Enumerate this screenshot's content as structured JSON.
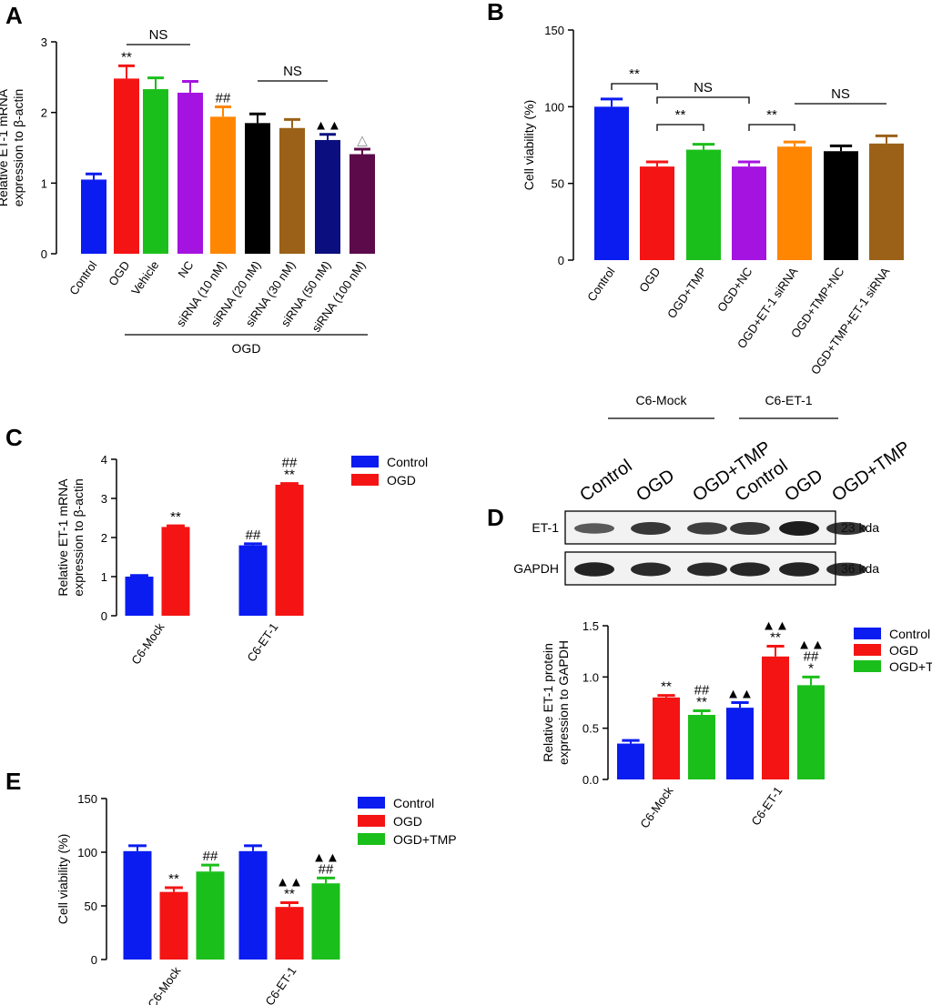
{
  "colors": {
    "blue": "#0a1cf0",
    "red": "#f41414",
    "green": "#1bbf1b",
    "purple": "#a413e0",
    "orange": "#ff8600",
    "black": "#000000",
    "brown": "#9b6118",
    "navy": "#0a0e7e",
    "maroon": "#5c0a4a"
  },
  "chart_data": [
    {
      "id": "A",
      "panel": "A",
      "type": "bar",
      "ylabel_lines": [
        "Relative ET-1 mRNA",
        "expression to β-actin"
      ],
      "ylim": [
        0,
        3
      ],
      "yticks": [
        0,
        1,
        2,
        3
      ],
      "categories": [
        "Control",
        "OGD",
        "Vehicle",
        "NC",
        "siRNA (10 nM)",
        "siRNA (20 nM)",
        "siRNA (30 nM)",
        "siRNA (50 nM)",
        "siRNA (100 nM)"
      ],
      "values": [
        1.05,
        2.48,
        2.33,
        2.28,
        1.94,
        1.85,
        1.78,
        1.61,
        1.41
      ],
      "errors": [
        0.08,
        0.18,
        0.16,
        0.16,
        0.14,
        0.13,
        0.12,
        0.08,
        0.07
      ],
      "bar_colors": [
        "blue",
        "red",
        "green",
        "purple",
        "orange",
        "black",
        "brown",
        "navy",
        "maroon"
      ],
      "annotations": [
        "",
        "**",
        "",
        "",
        "##",
        "",
        "",
        "▲▲",
        "△"
      ],
      "brackets": [
        {
          "from": 1,
          "to": 3,
          "label": "NS",
          "type": "line"
        },
        {
          "from": 5,
          "to": 7,
          "label": "NS",
          "type": "line"
        }
      ],
      "group_label": {
        "text": "OGD",
        "from": 1,
        "to": 8
      }
    },
    {
      "id": "B",
      "panel": "B",
      "type": "bar",
      "ylabel_lines": [
        "Cell viability (%)"
      ],
      "ylim": [
        0,
        150
      ],
      "yticks": [
        0,
        50,
        100,
        150
      ],
      "categories": [
        "Control",
        "OGD",
        "OGD+TMP",
        "OGD+NC",
        "OGD+ET-1 siRNA",
        "OGD+TMP+NC",
        "OGD+TMP+ET-1 siRNA"
      ],
      "values": [
        100,
        61,
        72,
        61,
        74,
        71,
        76
      ],
      "errors": [
        5,
        3,
        3.5,
        3,
        3,
        3.5,
        5
      ],
      "bar_colors": [
        "blue",
        "red",
        "green",
        "purple",
        "orange",
        "black",
        "brown"
      ],
      "annotations": [
        "",
        "",
        "",
        "",
        "",
        "",
        ""
      ],
      "brackets": [
        {
          "from": 0,
          "to": 1,
          "label": "**",
          "type": "bracket"
        },
        {
          "from": 1,
          "to": 3,
          "label": "NS",
          "type": "bracket"
        },
        {
          "from": 1,
          "to": 2,
          "label": "**",
          "type": "bracket"
        },
        {
          "from": 3,
          "to": 4,
          "label": "**",
          "type": "bracket"
        },
        {
          "from": 4,
          "to": 6,
          "label": "NS",
          "type": "line"
        }
      ]
    },
    {
      "id": "C",
      "panel": "C",
      "type": "bar",
      "ylabel_lines": [
        "Relative ET-1 mRNA",
        "expression to β-actin"
      ],
      "ylim": [
        0,
        4
      ],
      "yticks": [
        0,
        1,
        2,
        3,
        4
      ],
      "categories": [
        "C6-Mock",
        "C6-ET-1"
      ],
      "series": [
        {
          "name": "Control",
          "color": "blue",
          "values": [
            1.0,
            1.8
          ],
          "errors": [
            0.03,
            0.04
          ],
          "annotations": [
            [],
            [
              "##"
            ]
          ]
        },
        {
          "name": "OGD",
          "color": "red",
          "values": [
            2.27,
            3.35
          ],
          "errors": [
            0.03,
            0.03
          ],
          "annotations": [
            [
              "**"
            ],
            [
              "**",
              "##"
            ]
          ]
        }
      ]
    },
    {
      "id": "D",
      "panel": "D",
      "type": "bar",
      "ylabel_lines": [
        "Relative ET-1 protein",
        "expression to GAPDH"
      ],
      "ylim": [
        0,
        1.5
      ],
      "yticks": [
        0.0,
        0.5,
        1.0,
        1.5
      ],
      "categories": [
        "C6-Mock",
        "C6-ET-1"
      ],
      "series": [
        {
          "name": "Control",
          "color": "blue",
          "values": [
            0.35,
            0.7
          ],
          "errors": [
            0.03,
            0.05
          ],
          "annotations": [
            [],
            [
              "▲▲"
            ]
          ]
        },
        {
          "name": "OGD",
          "color": "red",
          "values": [
            0.8,
            1.2
          ],
          "errors": [
            0.02,
            0.1
          ],
          "annotations": [
            [
              "**"
            ],
            [
              "**",
              "▲▲"
            ]
          ]
        },
        {
          "name": "OGD+TMP",
          "color": "green",
          "values": [
            0.63,
            0.92
          ],
          "errors": [
            0.04,
            0.08
          ],
          "annotations": [
            [
              "**",
              "##"
            ],
            [
              "*",
              "##",
              "▲▲"
            ]
          ]
        }
      ]
    },
    {
      "id": "E",
      "panel": "E",
      "type": "bar",
      "ylabel_lines": [
        "Cell viability (%)"
      ],
      "ylim": [
        0,
        150
      ],
      "yticks": [
        0,
        50,
        100,
        150
      ],
      "categories": [
        "C6-Mock",
        "C6-ET-1"
      ],
      "series": [
        {
          "name": "Control",
          "color": "blue",
          "values": [
            101,
            101
          ],
          "errors": [
            5,
            5
          ],
          "annotations": [
            [],
            []
          ]
        },
        {
          "name": "OGD",
          "color": "red",
          "values": [
            63,
            49
          ],
          "errors": [
            4,
            4
          ],
          "annotations": [
            [
              "**"
            ],
            [
              "**",
              "▲▲"
            ]
          ]
        },
        {
          "name": "OGD+TMP",
          "color": "green",
          "values": [
            82,
            71
          ],
          "errors": [
            6,
            5
          ],
          "annotations": [
            [
              "##"
            ],
            [
              "##",
              "▲▲"
            ]
          ]
        }
      ]
    }
  ],
  "western_blot": {
    "panel": "D",
    "groups": [
      "C6-Mock",
      "C6-ET-1"
    ],
    "lanes": [
      "Control",
      "OGD",
      "OGD+TMP",
      "Control",
      "OGD",
      "OGD+TMP"
    ],
    "rows": [
      {
        "label": "ET-1",
        "size": "23 kda",
        "intensity": [
          0.55,
          0.8,
          0.75,
          0.8,
          1.0,
          0.82
        ]
      },
      {
        "label": "GAPDH",
        "size": "36 kda",
        "intensity": [
          0.95,
          0.9,
          0.9,
          0.92,
          0.95,
          0.88
        ]
      }
    ]
  }
}
